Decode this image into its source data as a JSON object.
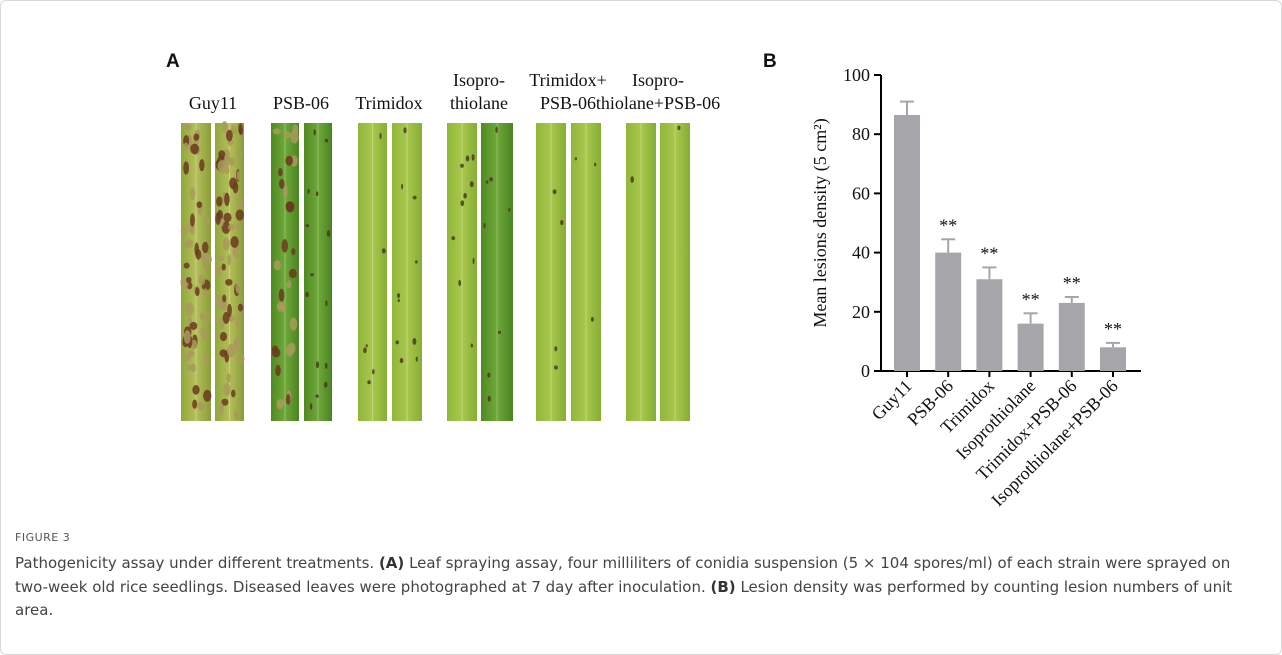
{
  "panel_a": {
    "label": "A",
    "columns": [
      {
        "lines": [
          "Guy11"
        ]
      },
      {
        "lines": [
          "PSB-06"
        ]
      },
      {
        "lines": [
          "Trimidox"
        ]
      },
      {
        "lines": [
          "Isopro-",
          "thiolane"
        ]
      },
      {
        "lines": [
          "Trimidox+",
          "PSB-06"
        ]
      },
      {
        "lines": [
          "Isopro-",
          "thiolane+PSB-06"
        ]
      }
    ]
  },
  "chart_data": {
    "type": "bar",
    "panel_label": "B",
    "y_label": "Mean lesions density (5 cm²)",
    "categories": [
      "Guy11",
      "PSB-06",
      "Trimidox",
      "Isoprothiolane",
      "Trimidox+PSB-06",
      "Isoprothiolane+PSB-06"
    ],
    "values": [
      86.5,
      40,
      31,
      16,
      23,
      8
    ],
    "errors": [
      4.5,
      4.5,
      4,
      3.5,
      2,
      1.5
    ],
    "significance": [
      null,
      "**",
      "**",
      "**",
      "**",
      "**"
    ],
    "color": "#a6a6aa",
    "ylim": [
      0,
      100
    ],
    "yticks": [
      0,
      20,
      40,
      60,
      80,
      100
    ]
  },
  "caption": {
    "label": "FIGURE 3",
    "parts": [
      "Pathogenicity assay under different treatments.",
      "(A)",
      "Leaf spraying assay, four milliliters of conidia suspension (5 × 104 spores/ml) of each strain were sprayed on two-week old rice seedlings. Diseased leaves were photographed at 7 day after inoculation.",
      "(B)",
      "Lesion density was performed by counting lesion numbers of unit area."
    ]
  }
}
